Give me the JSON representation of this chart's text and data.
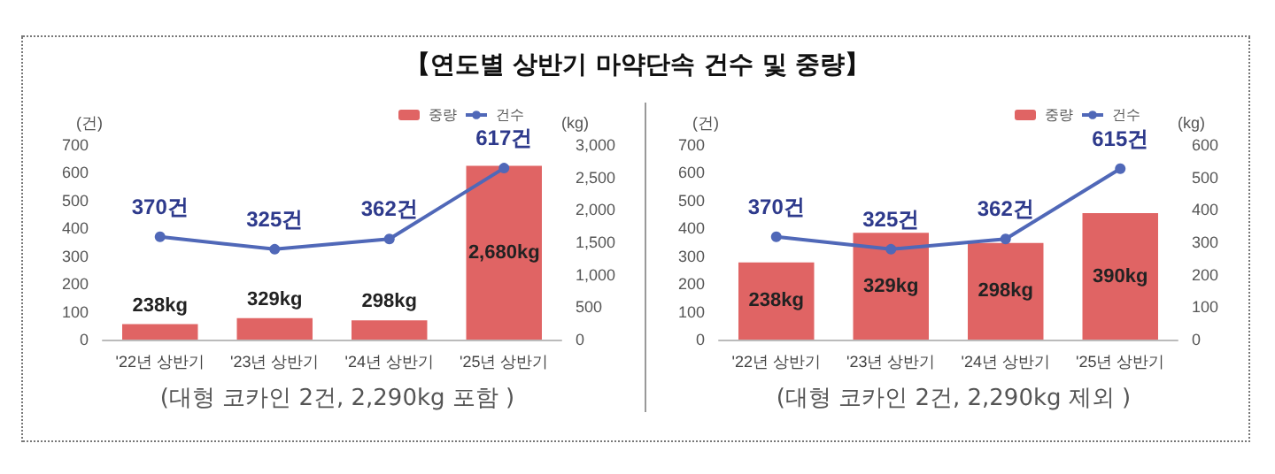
{
  "chart_data": [
    {
      "type": "bar",
      "title": "【연도별 상반기 마약단속 건수 및 중량】",
      "ylabel": "(건)",
      "y2label": "(kg)",
      "annotations": [
        "(대형 코카인 2건, 2,290kg 포함 )"
      ],
      "categories": [
        "'22년 상반기",
        "'23년 상반기",
        "'24년 상반기",
        "'25년 상반기"
      ],
      "series": [
        {
          "name": "중량",
          "axis": "y2",
          "color": "#e06464",
          "values": [
            238,
            329,
            298,
            2680
          ],
          "value_labels": [
            "238kg",
            "329kg",
            "298kg",
            "2,680kg"
          ]
        },
        {
          "name": "건수",
          "type": "line",
          "color": "#5068b8",
          "values": [
            370,
            325,
            362,
            617
          ],
          "value_labels": [
            "370건",
            "325건",
            "362건",
            "617건"
          ]
        }
      ],
      "ylim": [
        0,
        700
      ],
      "yticks": [
        0,
        100,
        200,
        300,
        400,
        500,
        600,
        700
      ],
      "y2lim": [
        0,
        3000
      ],
      "y2ticks": [
        0,
        500,
        {
          "value": 1000,
          "label": "1,000"
        },
        {
          "value": 1500,
          "label": "1,500"
        },
        {
          "value": 2000,
          "label": "2,000"
        },
        {
          "value": 2500,
          "label": "2,500"
        },
        {
          "value": 3000,
          "label": "3,000"
        }
      ],
      "grid": false,
      "legend": "top right",
      "marker": "circle"
    },
    {
      "type": "bar",
      "ylabel": "(건)",
      "y2label": "(kg)",
      "annotations": [
        "(대형 코카인 2건, 2,290kg 제외 )"
      ],
      "categories": [
        "'22년 상반기",
        "'23년 상반기",
        "'24년 상반기",
        "'25년 상반기"
      ],
      "series": [
        {
          "name": "중량",
          "axis": "y2",
          "color": "#e06464",
          "values": [
            238,
            329,
            298,
            390
          ],
          "value_labels": [
            "238kg",
            "329kg",
            "298kg",
            "390kg"
          ]
        },
        {
          "name": "건수",
          "type": "line",
          "color": "#5068b8",
          "values": [
            370,
            325,
            362,
            615
          ],
          "value_labels": [
            "370건",
            "325건",
            "362건",
            "615건"
          ]
        }
      ],
      "ylim": [
        0,
        700
      ],
      "yticks": [
        0,
        100,
        200,
        300,
        400,
        500,
        600,
        700
      ],
      "y2lim": [
        0,
        600
      ],
      "y2ticks": [
        0,
        100,
        200,
        300,
        400,
        500,
        600
      ],
      "grid": false,
      "legend": "top right",
      "marker": "circle"
    }
  ]
}
